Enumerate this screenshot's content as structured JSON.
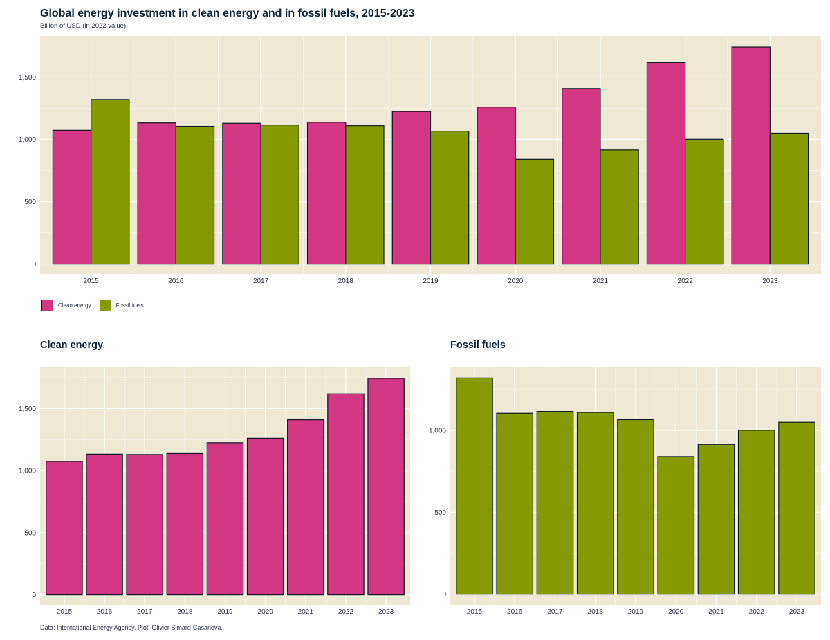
{
  "title": "Global energy investment in clean energy and in fossil fuels, 2015-2023",
  "subtitle": "Billion of USD (in 2022 value)",
  "caption": "Data: International Energy Agency. Plot: Olivier Simard-Casanova.",
  "colors": {
    "clean": "#d33682",
    "fossil": "#859900",
    "panel_bg": "#eee8d5",
    "grid": "#ffffff",
    "bar_border": "#0b1a26",
    "text": "#1f2d3d"
  },
  "legend": [
    {
      "label": "Clean energy",
      "color": "#d33682"
    },
    {
      "label": "Fossil fuels",
      "color": "#859900"
    }
  ],
  "panels": {
    "clean_title": "Clean energy",
    "fossil_title": "Fossil fuels"
  },
  "chart_data": [
    {
      "type": "bar",
      "title": "Global energy investment in clean energy and in fossil fuels, 2015-2023",
      "subtitle": "Billion of USD (in 2022 value)",
      "xlabel": "",
      "ylabel": "",
      "categories": [
        "2015",
        "2016",
        "2017",
        "2018",
        "2019",
        "2020",
        "2021",
        "2022",
        "2023"
      ],
      "series": [
        {
          "name": "Clean energy",
          "color": "#d33682",
          "values": [
            1073,
            1132,
            1129,
            1137,
            1224,
            1260,
            1409,
            1617,
            1741
          ]
        },
        {
          "name": "Fossil fuels",
          "color": "#859900",
          "values": [
            1320,
            1105,
            1116,
            1110,
            1066,
            840,
            915,
            1001,
            1050
          ]
        }
      ],
      "ylim": [
        -80,
        1830
      ],
      "yticks": [
        0,
        500,
        1000,
        1500
      ],
      "ytick_labels": [
        "0",
        "500",
        "1,000",
        "1,500"
      ],
      "grid": true,
      "legend": "bottom-left"
    },
    {
      "type": "bar",
      "title": "Clean energy",
      "xlabel": "",
      "ylabel": "",
      "categories": [
        "2015",
        "2016",
        "2017",
        "2018",
        "2019",
        "2020",
        "2021",
        "2022",
        "2023"
      ],
      "series": [
        {
          "name": "Clean energy",
          "color": "#d33682",
          "values": [
            1073,
            1132,
            1129,
            1137,
            1224,
            1260,
            1409,
            1617,
            1741
          ]
        }
      ],
      "ylim": [
        -80,
        1830
      ],
      "yticks": [
        0,
        500,
        1000,
        1500
      ],
      "ytick_labels": [
        "0",
        "500",
        "1,000",
        "1,500"
      ],
      "grid": true
    },
    {
      "type": "bar",
      "title": "Fossil fuels",
      "xlabel": "",
      "ylabel": "",
      "categories": [
        "2015",
        "2016",
        "2017",
        "2018",
        "2019",
        "2020",
        "2021",
        "2022",
        "2023"
      ],
      "series": [
        {
          "name": "Fossil fuels",
          "color": "#859900",
          "values": [
            1320,
            1105,
            1116,
            1110,
            1066,
            840,
            915,
            1001,
            1050
          ]
        }
      ],
      "ylim": [
        -65,
        1385
      ],
      "yticks": [
        0,
        500,
        1000
      ],
      "ytick_labels": [
        "0",
        "500",
        "1,000"
      ],
      "grid": true
    }
  ]
}
